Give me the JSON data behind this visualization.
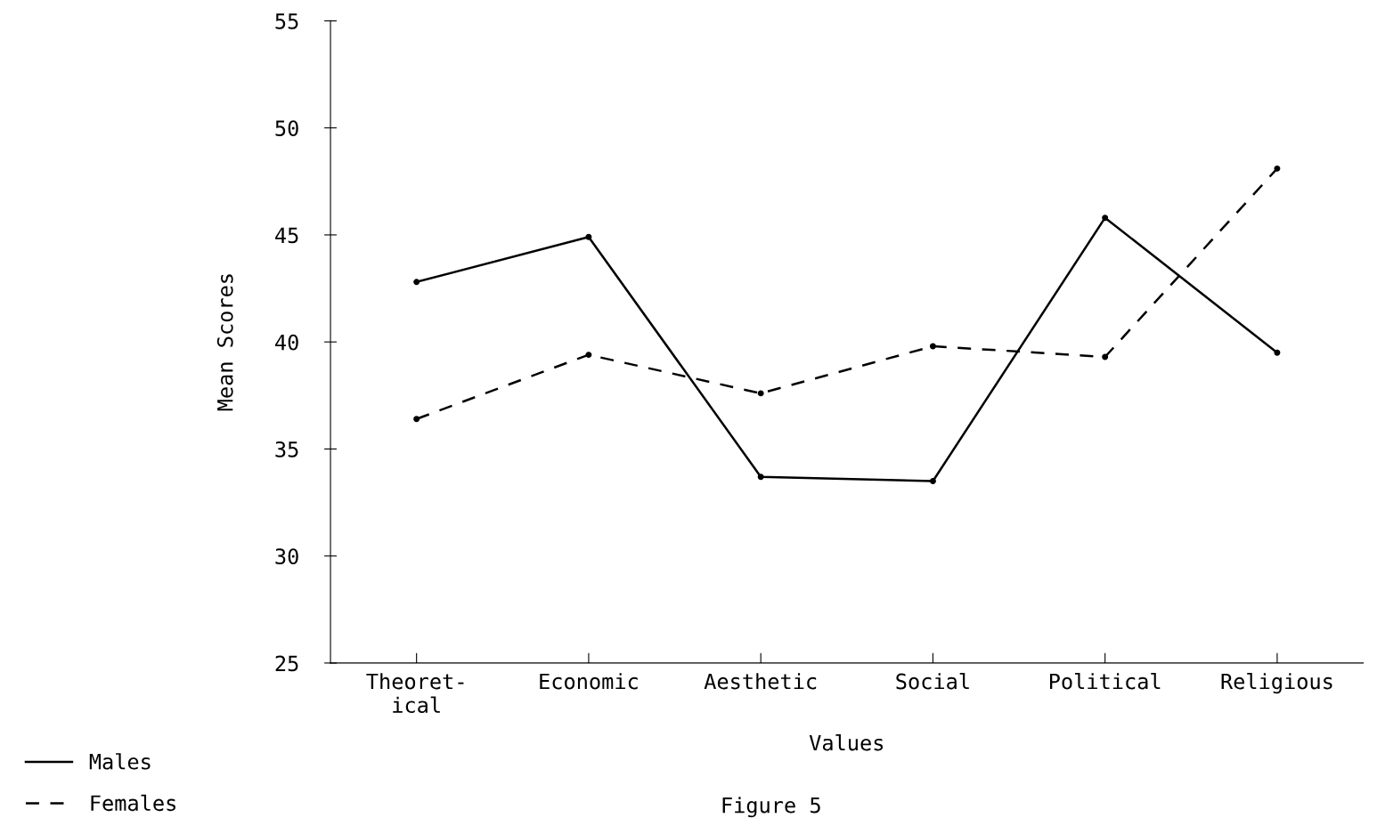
{
  "chart_data": {
    "type": "line",
    "xlabel": "Values",
    "ylabel": "Mean Scores",
    "categories": [
      "Theoret-\nical",
      "Economic",
      "Aesthetic",
      "Social",
      "Political",
      "Religious"
    ],
    "series": [
      {
        "name": "Males",
        "color": "#000000",
        "line_style": "solid",
        "values": [
          42.8,
          44.9,
          33.7,
          33.5,
          45.8,
          39.5
        ]
      },
      {
        "name": "Females",
        "color": "#000000",
        "line_style": "dashed",
        "values": [
          36.4,
          39.4,
          37.6,
          39.8,
          39.3,
          48.1
        ]
      }
    ],
    "ylim": [
      25,
      55
    ],
    "yticks": [
      25,
      30,
      35,
      40,
      45,
      50,
      55
    ],
    "grid": false,
    "marker": "circle",
    "legend": "bottom left",
    "annotations": [
      "Figure 5"
    ]
  }
}
